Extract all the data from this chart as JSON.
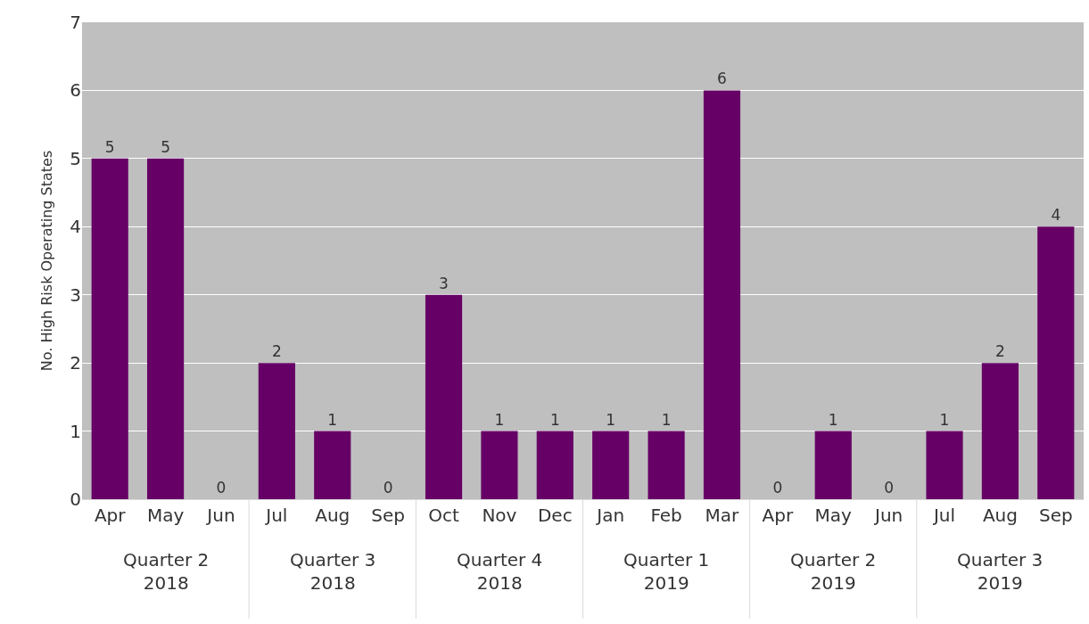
{
  "chart_data": {
    "type": "bar",
    "ylabel": "No. High Risk Operating States",
    "categories": [
      "Apr",
      "May",
      "Jun",
      "Jul",
      "Aug",
      "Sep",
      "Oct",
      "Nov",
      "Dec",
      "Jan",
      "Feb",
      "Mar",
      "Apr",
      "May",
      "Jun",
      "Jul",
      "Aug",
      "Sep"
    ],
    "values": [
      5,
      5,
      0,
      2,
      1,
      0,
      3,
      1,
      1,
      1,
      1,
      6,
      0,
      1,
      0,
      1,
      2,
      4
    ],
    "color": "#660066",
    "ylim": [
      0,
      7
    ],
    "yticks": [
      0,
      1,
      2,
      3,
      4,
      5,
      6,
      7
    ],
    "grid": "y",
    "data_labels": true,
    "annotations": [
      "Quarter 2\n2018",
      "Quarter 3\n2018",
      "Quarter 4\n2018",
      "Quarter 1\n2019",
      "Quarter 2\n2019",
      "Quarter 3\n2019"
    ]
  }
}
